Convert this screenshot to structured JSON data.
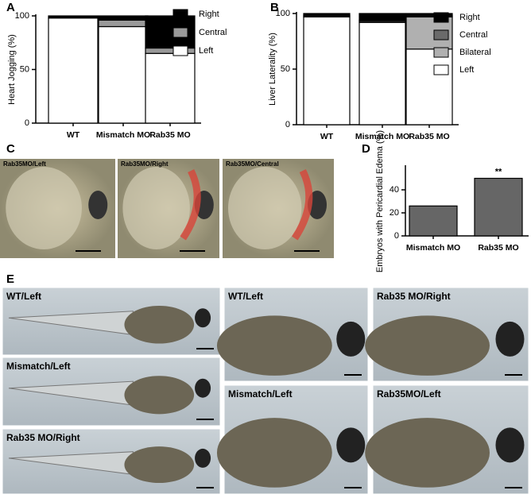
{
  "chart_data": [
    {
      "type": "stacked_bar",
      "panel": "A",
      "ylabel": "Heart Jogging (%)",
      "categories": [
        "WT",
        "Mismatch MO",
        "Rab35 MO"
      ],
      "series": [
        {
          "name": "Left",
          "color": "#ffffff",
          "values": [
            98,
            90,
            65
          ]
        },
        {
          "name": "Central",
          "color": "#9a9a9a",
          "values": [
            0,
            6,
            5
          ]
        },
        {
          "name": "Right",
          "color": "#000000",
          "values": [
            2,
            4,
            30
          ]
        }
      ],
      "ylim": [
        0,
        100
      ],
      "yticks": [
        0,
        50,
        100
      ]
    },
    {
      "type": "stacked_bar",
      "panel": "B",
      "ylabel": "Liver Laterality (%)",
      "categories": [
        "WT",
        "Mismatch MO",
        "Rab35 MO"
      ],
      "series": [
        {
          "name": "Left",
          "color": "#ffffff",
          "values": [
            97,
            92,
            68
          ]
        },
        {
          "name": "Bilateral",
          "color": "#b0b0b0",
          "values": [
            0,
            1,
            29
          ]
        },
        {
          "name": "Central",
          "color": "#6a6a6a",
          "values": [
            1,
            1,
            1
          ]
        },
        {
          "name": "Right",
          "color": "#000000",
          "values": [
            2,
            6,
            2
          ]
        }
      ],
      "ylim": [
        0,
        100
      ],
      "yticks": [
        0,
        50,
        100
      ]
    },
    {
      "type": "bar",
      "panel": "D",
      "ylabel": "Embryos with Pericardial Edema (%)",
      "categories": [
        "Mismatch MO",
        "Rab35 MO"
      ],
      "values": [
        26,
        50
      ],
      "color": "#666666",
      "annotation": "**",
      "ylim": [
        0,
        60
      ],
      "yticks": [
        0,
        20,
        40
      ]
    }
  ],
  "panel_c": {
    "letter": "C",
    "photos": [
      "Rab35MO/Left",
      "Rab35MO/Right",
      "Rab35MO/Central"
    ]
  },
  "panel_e": {
    "letter": "E",
    "photos": [
      "WT/Left",
      "Mismatch/Left",
      "Rab35 MO/Right",
      "WT/Left",
      "Mismatch/Left",
      "Rab35 MO/Right",
      "Rab35MO/Left"
    ]
  }
}
